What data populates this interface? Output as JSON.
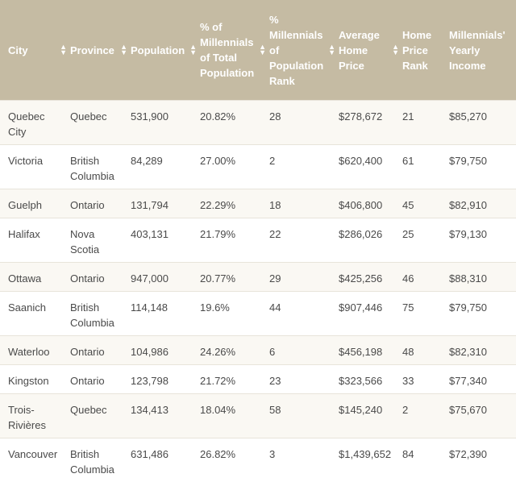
{
  "table": {
    "columns": [
      {
        "label": "City"
      },
      {
        "label": "Province"
      },
      {
        "label": "Population"
      },
      {
        "label": "% of Millennials of Total Population"
      },
      {
        "label": "% Millennials of Population Rank"
      },
      {
        "label": "Average Home Price"
      },
      {
        "label": "Home Price Rank"
      },
      {
        "label": "Millennials' Yearly Income"
      }
    ],
    "sort_icon": "sort-arrows-icon",
    "rows": [
      [
        "Quebec City",
        "Quebec",
        "531,900",
        "20.82%",
        "28",
        "$278,672",
        "21",
        "$85,270"
      ],
      [
        "Victoria",
        "British Columbia",
        "84,289",
        "27.00%",
        "2",
        "$620,400",
        "61",
        "$79,750"
      ],
      [
        "Guelph",
        "Ontario",
        "131,794",
        "22.29%",
        "18",
        "$406,800",
        "45",
        "$82,910"
      ],
      [
        "Halifax",
        "Nova Scotia",
        "403,131",
        "21.79%",
        "22",
        "$286,026",
        "25",
        "$79,130"
      ],
      [
        "Ottawa",
        "Ontario",
        "947,000",
        "20.77%",
        "29",
        "$425,256",
        "46",
        "$88,310"
      ],
      [
        "Saanich",
        "British Columbia",
        "114,148",
        "19.6%",
        "44",
        "$907,446",
        "75",
        "$79,750"
      ],
      [
        "Waterloo",
        "Ontario",
        "104,986",
        "24.26%",
        "6",
        "$456,198",
        "48",
        "$82,310"
      ],
      [
        "Kingston",
        "Ontario",
        "123,798",
        "21.72%",
        "23",
        "$323,566",
        "33",
        "$77,340"
      ],
      [
        "Trois-Rivières",
        "Quebec",
        "134,413",
        "18.04%",
        "58",
        "$145,240",
        "2",
        "$75,670"
      ],
      [
        "Vancouver",
        "British Columbia",
        "631,486",
        "26.82%",
        "3",
        "$1,439,652",
        "84",
        "$72,390"
      ]
    ]
  }
}
